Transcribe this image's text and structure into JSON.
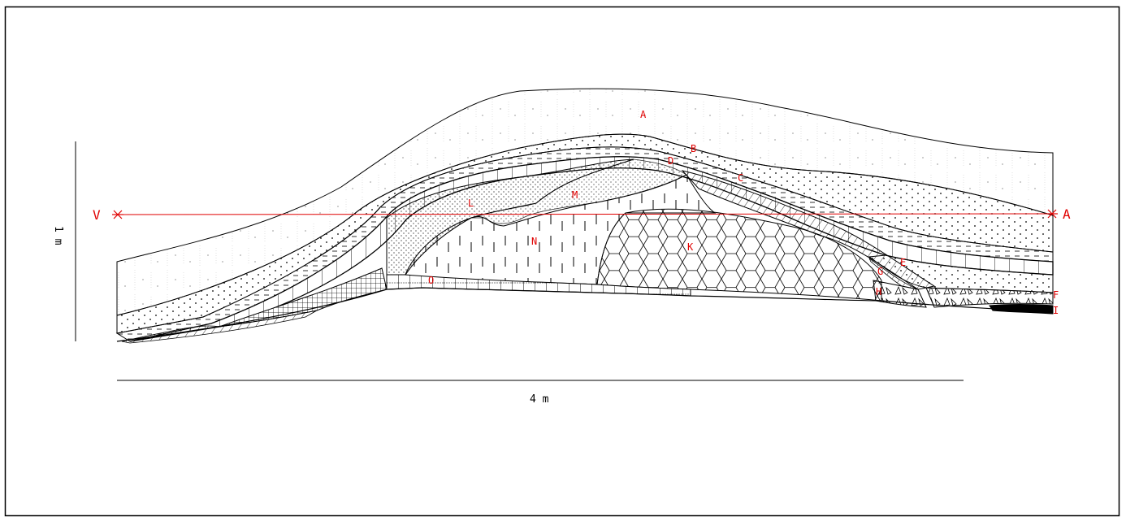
{
  "section": {
    "scale_horizontal": "4 m",
    "scale_vertical": "1 m",
    "datum_left": "V",
    "datum_right": "A",
    "datum_color": "#e00000",
    "label_color": "#e00000"
  },
  "layers": {
    "A": "A",
    "B": "B",
    "C": "C",
    "D": "D",
    "E": "E",
    "F": "F",
    "G": "G",
    "H": "H",
    "I": "I",
    "K": "K",
    "L": "L",
    "M": "M",
    "N": "N",
    "O": "O"
  }
}
